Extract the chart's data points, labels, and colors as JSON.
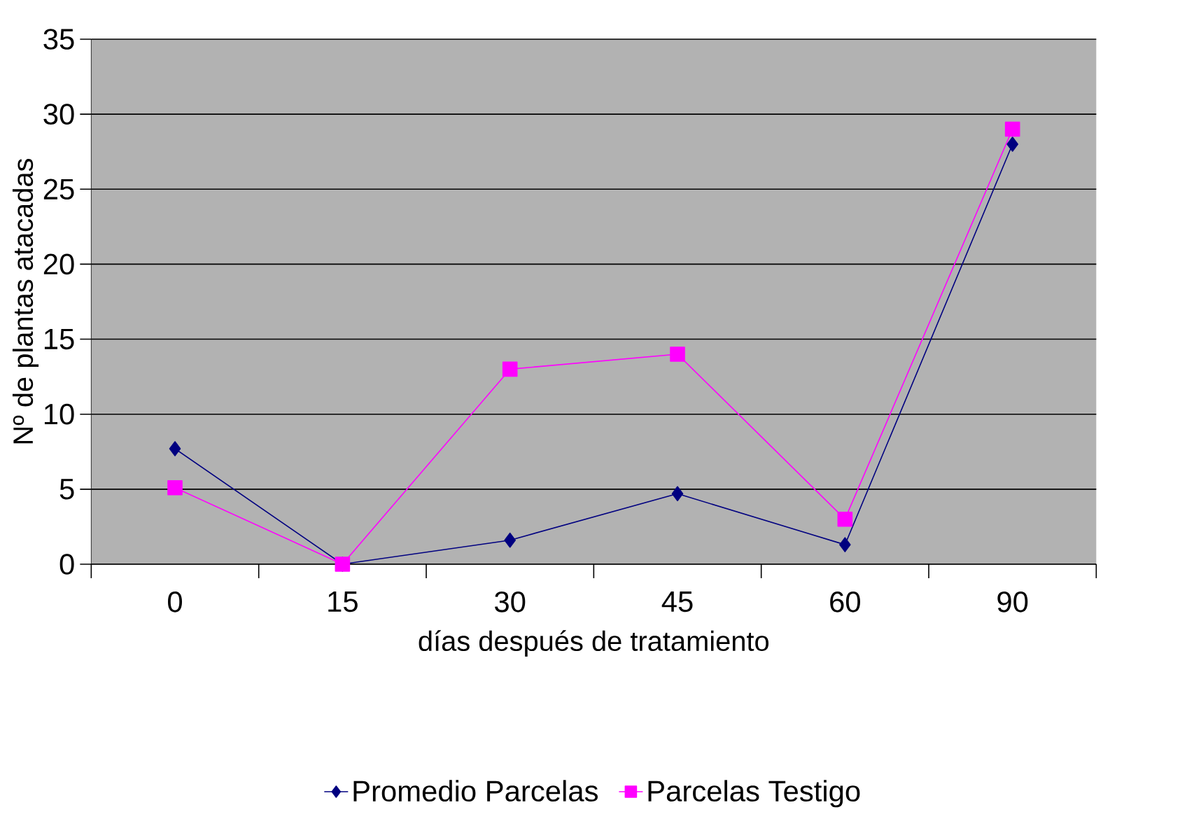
{
  "chart_data": {
    "type": "line",
    "xlabel": "días después de tratamiento",
    "ylabel": "Nº de plantas atacadas",
    "categories": [
      "0",
      "15",
      "30",
      "45",
      "60",
      "90"
    ],
    "series": [
      {
        "name": "Promedio Parcelas",
        "color": "#000080",
        "marker": "diamond",
        "values": [
          7.7,
          0,
          1.6,
          4.7,
          1.3,
          28
        ]
      },
      {
        "name": "Parcelas Testigo",
        "color": "#ff00ff",
        "marker": "square",
        "values": [
          5.1,
          0,
          13,
          14,
          3,
          29
        ]
      }
    ],
    "ylim": [
      0,
      35
    ],
    "yticks": [
      0,
      5,
      10,
      15,
      20,
      25,
      30,
      35
    ],
    "grid": "y",
    "legend": "bottom"
  }
}
